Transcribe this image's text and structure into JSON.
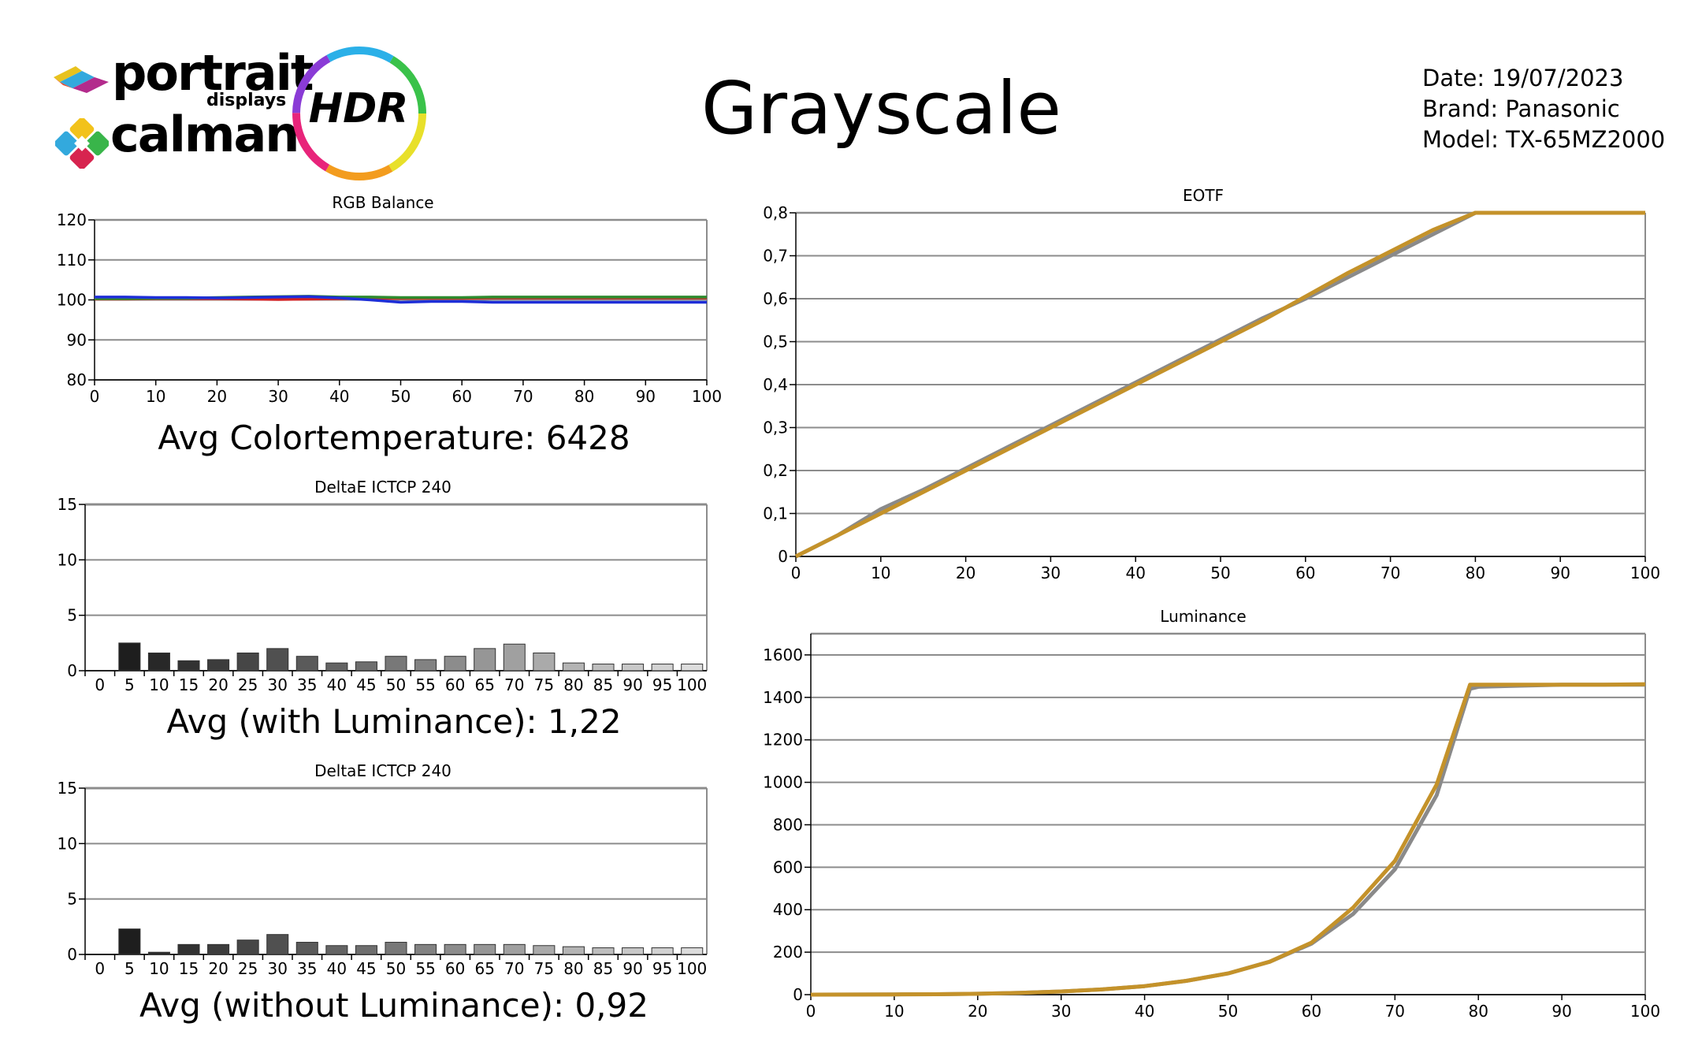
{
  "header": {
    "logo": {
      "brand": "portrait",
      "sub": "displays",
      "product": "calman",
      "badge": "HDR"
    },
    "title": "Grayscale",
    "meta": {
      "date": "Date: 19/07/2023",
      "brand": "Brand: Panasonic",
      "model": "Model: TX-65MZ2000"
    }
  },
  "stats": {
    "colortemp": "Avg Colortemperature: 6428",
    "with_luminance": "Avg (with Luminance): 1,22",
    "without_luminance": "Avg (without Luminance): 0,92"
  },
  "colors": {
    "gold": "#C4922A",
    "gray_ref": "#8A8A8A",
    "red": "#D42020",
    "green": "#2E8B2E",
    "blue": "#1E2ED8"
  },
  "chart_data": [
    {
      "id": "rgb_balance",
      "type": "line",
      "title": "RGB Balance",
      "xlim": [
        0,
        100
      ],
      "ylim": [
        80,
        120
      ],
      "xticks": [
        0,
        10,
        20,
        30,
        40,
        50,
        60,
        70,
        80,
        90,
        100
      ],
      "yticks": [
        80,
        90,
        100,
        110,
        120
      ],
      "grid": true,
      "x": [
        0,
        5,
        10,
        15,
        20,
        25,
        30,
        35,
        40,
        45,
        50,
        55,
        60,
        65,
        70,
        75,
        80,
        85,
        90,
        95,
        100
      ],
      "series": [
        {
          "color": "#D42020",
          "values": [
            100.2,
            100.2,
            100.3,
            100.3,
            100.3,
            100.2,
            100.1,
            100.2,
            100.3,
            100.4,
            100.4,
            100.4,
            100.4,
            100.5,
            100.5,
            100.5,
            100.5,
            100.5,
            100.5,
            100.5,
            100.5
          ]
        },
        {
          "color": "#2E8B2E",
          "values": [
            100.3,
            100.3,
            100.4,
            100.4,
            100.6,
            100.7,
            100.8,
            100.9,
            100.7,
            100.7,
            100.6,
            100.6,
            100.6,
            100.7,
            100.7,
            100.7,
            100.7,
            100.7,
            100.7,
            100.7,
            100.7
          ]
        },
        {
          "color": "#1E2ED8",
          "values": [
            100.7,
            100.7,
            100.6,
            100.6,
            100.5,
            100.6,
            100.7,
            100.8,
            100.5,
            100.0,
            99.4,
            99.6,
            99.6,
            99.4,
            99.4,
            99.4,
            99.4,
            99.4,
            99.4,
            99.4,
            99.4
          ]
        }
      ]
    },
    {
      "id": "deltae_with_lum",
      "type": "bar",
      "title": "DeltaE ICTCP 240",
      "ylim": [
        0,
        15
      ],
      "yticks": [
        0,
        5,
        10,
        15
      ],
      "grid": true,
      "categories": [
        "0",
        "5",
        "10",
        "15",
        "20",
        "25",
        "30",
        "35",
        "40",
        "45",
        "50",
        "55",
        "60",
        "65",
        "70",
        "75",
        "80",
        "85",
        "90",
        "95",
        "100"
      ],
      "values": [
        0,
        2.5,
        1.6,
        0.9,
        1.0,
        1.6,
        2.0,
        1.3,
        0.7,
        0.8,
        1.3,
        1.0,
        1.3,
        2.0,
        2.4,
        1.6,
        0.7,
        0.6,
        0.6,
        0.6,
        0.6
      ]
    },
    {
      "id": "deltae_without_lum",
      "type": "bar",
      "title": "DeltaE ICTCP 240",
      "ylim": [
        0,
        15
      ],
      "yticks": [
        0,
        5,
        10,
        15
      ],
      "grid": true,
      "categories": [
        "0",
        "5",
        "10",
        "15",
        "20",
        "25",
        "30",
        "35",
        "40",
        "45",
        "50",
        "55",
        "60",
        "65",
        "70",
        "75",
        "80",
        "85",
        "90",
        "95",
        "100"
      ],
      "values": [
        0,
        2.3,
        0.2,
        0.9,
        0.9,
        1.3,
        1.8,
        1.1,
        0.8,
        0.8,
        1.1,
        0.9,
        0.9,
        0.9,
        0.9,
        0.8,
        0.7,
        0.6,
        0.6,
        0.6,
        0.6
      ]
    },
    {
      "id": "eotf",
      "type": "line",
      "title": "EOTF",
      "xlim": [
        0,
        100
      ],
      "ylim": [
        0,
        0.8
      ],
      "xticks": [
        0,
        10,
        20,
        30,
        40,
        50,
        60,
        70,
        80,
        90,
        100
      ],
      "yticks": [
        "0",
        "0,1",
        "0,2",
        "0,3",
        "0,4",
        "0,5",
        "0,6",
        "0,7",
        "0,8"
      ],
      "ytick_values": [
        0,
        0.1,
        0.2,
        0.3,
        0.4,
        0.5,
        0.6,
        0.7,
        0.8
      ],
      "grid": true,
      "x": [
        0,
        5,
        10,
        15,
        20,
        25,
        30,
        35,
        40,
        45,
        50,
        55,
        60,
        65,
        70,
        75,
        80,
        85,
        90,
        95,
        100
      ],
      "series": [
        {
          "color": "#8A8A8A",
          "values": [
            0,
            0.05,
            0.11,
            0.155,
            0.205,
            0.255,
            0.305,
            0.355,
            0.405,
            0.455,
            0.505,
            0.555,
            0.6,
            0.65,
            0.7,
            0.75,
            0.8,
            0.8,
            0.8,
            0.8,
            0.8
          ]
        },
        {
          "color": "#C4922A",
          "values": [
            0,
            0.05,
            0.1,
            0.15,
            0.2,
            0.25,
            0.3,
            0.35,
            0.4,
            0.45,
            0.5,
            0.55,
            0.605,
            0.66,
            0.71,
            0.76,
            0.8,
            0.8,
            0.8,
            0.8,
            0.8
          ]
        }
      ]
    },
    {
      "id": "luminance",
      "type": "line",
      "title": "Luminance",
      "xlim": [
        0,
        100
      ],
      "ylim": [
        0,
        1700
      ],
      "xticks": [
        0,
        10,
        20,
        30,
        40,
        50,
        60,
        70,
        80,
        90,
        100
      ],
      "yticks": [
        0,
        200,
        400,
        600,
        800,
        1000,
        1200,
        1400,
        1600
      ],
      "grid": true,
      "x": [
        0,
        5,
        10,
        15,
        20,
        25,
        30,
        35,
        40,
        45,
        50,
        55,
        60,
        65,
        70,
        75,
        79,
        80,
        85,
        90,
        95,
        100
      ],
      "series": [
        {
          "color": "#8A8A8A",
          "values": [
            0,
            0.5,
            1,
            2,
            4,
            8,
            15,
            25,
            40,
            65,
            100,
            155,
            240,
            380,
            590,
            940,
            1440,
            1450,
            1455,
            1460,
            1460,
            1460
          ]
        },
        {
          "color": "#C4922A",
          "values": [
            0,
            0.5,
            1,
            2,
            4,
            8,
            15,
            25,
            40,
            65,
            100,
            155,
            245,
            410,
            630,
            990,
            1460,
            1460,
            1460,
            1460,
            1460,
            1462
          ]
        }
      ]
    }
  ]
}
